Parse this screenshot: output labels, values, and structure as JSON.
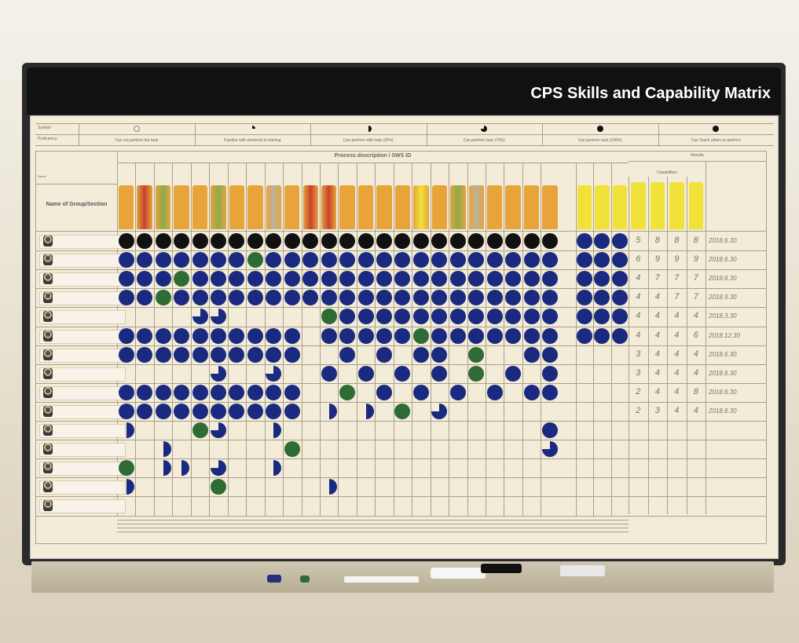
{
  "board": {
    "title": "CPS Skills and Capability Matrix",
    "legend": {
      "row_labels": [
        "Symbol",
        "Proficiency"
      ],
      "levels": [
        {
          "symbol": "empty-circle",
          "text": "Can not perform the task"
        },
        {
          "symbol": "quarter-circle",
          "text": "Familiar with elements in training"
        },
        {
          "symbol": "half-circle",
          "text": "Can perform with help (30%)"
        },
        {
          "symbol": "three-quarter-circle",
          "text": "Can perform task (70%)"
        },
        {
          "symbol": "full-circle",
          "text": "Can perform task (100%)"
        },
        {
          "symbol": "full-circle",
          "text": "Can Teach others to perform"
        }
      ]
    },
    "headers": {
      "process": "Process description / SWS ID",
      "results": "Results",
      "capabilities": "Capabilities",
      "name_col": "Name of Group/Section",
      "name": "Name"
    },
    "colors": {
      "blue": "#1a2a80",
      "black": "#111111",
      "green": "#2e6b35",
      "tab_orange": "#e8a33a",
      "tab_yellow": "#f1e23a",
      "tab_red": "#c8412f",
      "tab_green": "#8bab4c",
      "tab_grey": "#b9b49c"
    },
    "tab_colors": [
      "orange",
      "red",
      "green",
      "orange",
      "orange",
      "green",
      "orange",
      "orange",
      "grey",
      "orange",
      "red",
      "red",
      "orange",
      "orange",
      "orange",
      "orange",
      "yellow",
      "orange",
      "green",
      "grey",
      "orange",
      "orange",
      "orange",
      "orange"
    ],
    "grid_legend": "K=can teach (black), B=full (blue), G=green, Q=three-quarter, H=half, .=empty",
    "grid": [
      "KKKKKKKKKKKKKKKKKKKKKKKK|BBB",
      "BBBBBBBGBBBBBBBBBBBBBBBB|BBB",
      "BBBGBBBBBBBBBBBBBBBBBBBB|BBB",
      "BBGBBBBBBBBBBBBBBBBBBBBB|BBB",
      "....QQ.....GBBBBBBBBBBBB|BBB",
      "BBBBBBBBBB.BBBBBGBBBBBBB|BBB",
      "BBBBBBBBBB..B.B.BB.G..BB|...",
      ".....Q..Q..B.B.B.B.G.B.B|...",
      "BBBBBBBBBB..G.B.B.B.B.BB|...",
      "BBBBBBBBBB.H.H.G.Q......|...",
      "H...GQ..H..............B|...",
      "..H......G.............Q|...",
      "G.HH.Q..H...............|...",
      "H....G.....H............|...",
      "........................|..."
    ],
    "results": [
      {
        "capabilities": [
          "5",
          "8",
          "8",
          "8"
        ],
        "date": "2018.6.30"
      },
      {
        "capabilities": [
          "6",
          "9",
          "9",
          "9"
        ],
        "date": "2018.6.30"
      },
      {
        "capabilities": [
          "4",
          "7",
          "7",
          "7"
        ],
        "date": "2018.6.30"
      },
      {
        "capabilities": [
          "4",
          "4",
          "7",
          "7"
        ],
        "date": "2018.9.30"
      },
      {
        "capabilities": [
          "4",
          "4",
          "4",
          "4"
        ],
        "date": "2018.3.30"
      },
      {
        "capabilities": [
          "4",
          "4",
          "4",
          "6"
        ],
        "date": "2018.12.30"
      },
      {
        "capabilities": [
          "3",
          "4",
          "4",
          "4"
        ],
        "date": "2018.6.30"
      },
      {
        "capabilities": [
          "3",
          "4",
          "4",
          "4"
        ],
        "date": "2018.6.30"
      },
      {
        "capabilities": [
          "2",
          "4",
          "4",
          "8"
        ],
        "date": "2018.6.30"
      },
      {
        "capabilities": [
          "2",
          "3",
          "4",
          "4"
        ],
        "date": "2018.6.30"
      }
    ]
  }
}
